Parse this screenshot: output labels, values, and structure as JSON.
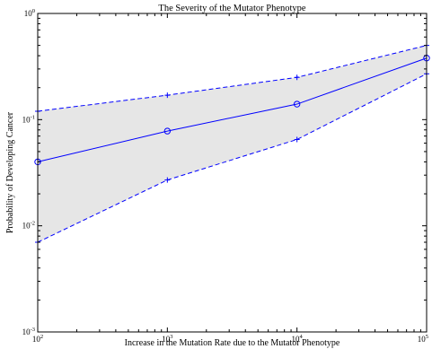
{
  "chart_data": {
    "type": "line",
    "title": "The Severity of the Mutator Phenotype",
    "xlabel": "Increase in the Mutation Rate due to the Mutator Phenotype",
    "ylabel": "Probability of Developing Cancer",
    "x_scale": "log",
    "y_scale": "log",
    "xlim": [
      100,
      100000
    ],
    "ylim": [
      0.001,
      1
    ],
    "x_ticks": [
      {
        "base": "10",
        "exp": "2"
      },
      {
        "base": "10",
        "exp": "3"
      },
      {
        "base": "10",
        "exp": "4"
      },
      {
        "base": "10",
        "exp": "5"
      }
    ],
    "y_ticks": [
      {
        "base": "10",
        "exp": "-3"
      },
      {
        "base": "10",
        "exp": "-2"
      },
      {
        "base": "10",
        "exp": "-1"
      },
      {
        "base": "10",
        "exp": "0"
      }
    ],
    "grid": false,
    "x": [
      100,
      1000,
      10000,
      100000
    ],
    "series": [
      {
        "role": "estimate",
        "style": "solid",
        "marker": "circle",
        "values": [
          0.04,
          0.078,
          0.14,
          0.38
        ]
      },
      {
        "role": "upper bound",
        "style": "dashed",
        "marker": "plus",
        "values": [
          0.12,
          0.17,
          0.25,
          0.5
        ]
      },
      {
        "role": "lower bound",
        "style": "dashed",
        "marker": "plus",
        "values": [
          0.007,
          0.027,
          0.065,
          0.27
        ]
      }
    ],
    "band_fill": "#e6e6e6",
    "line_color": "#0000ff"
  }
}
